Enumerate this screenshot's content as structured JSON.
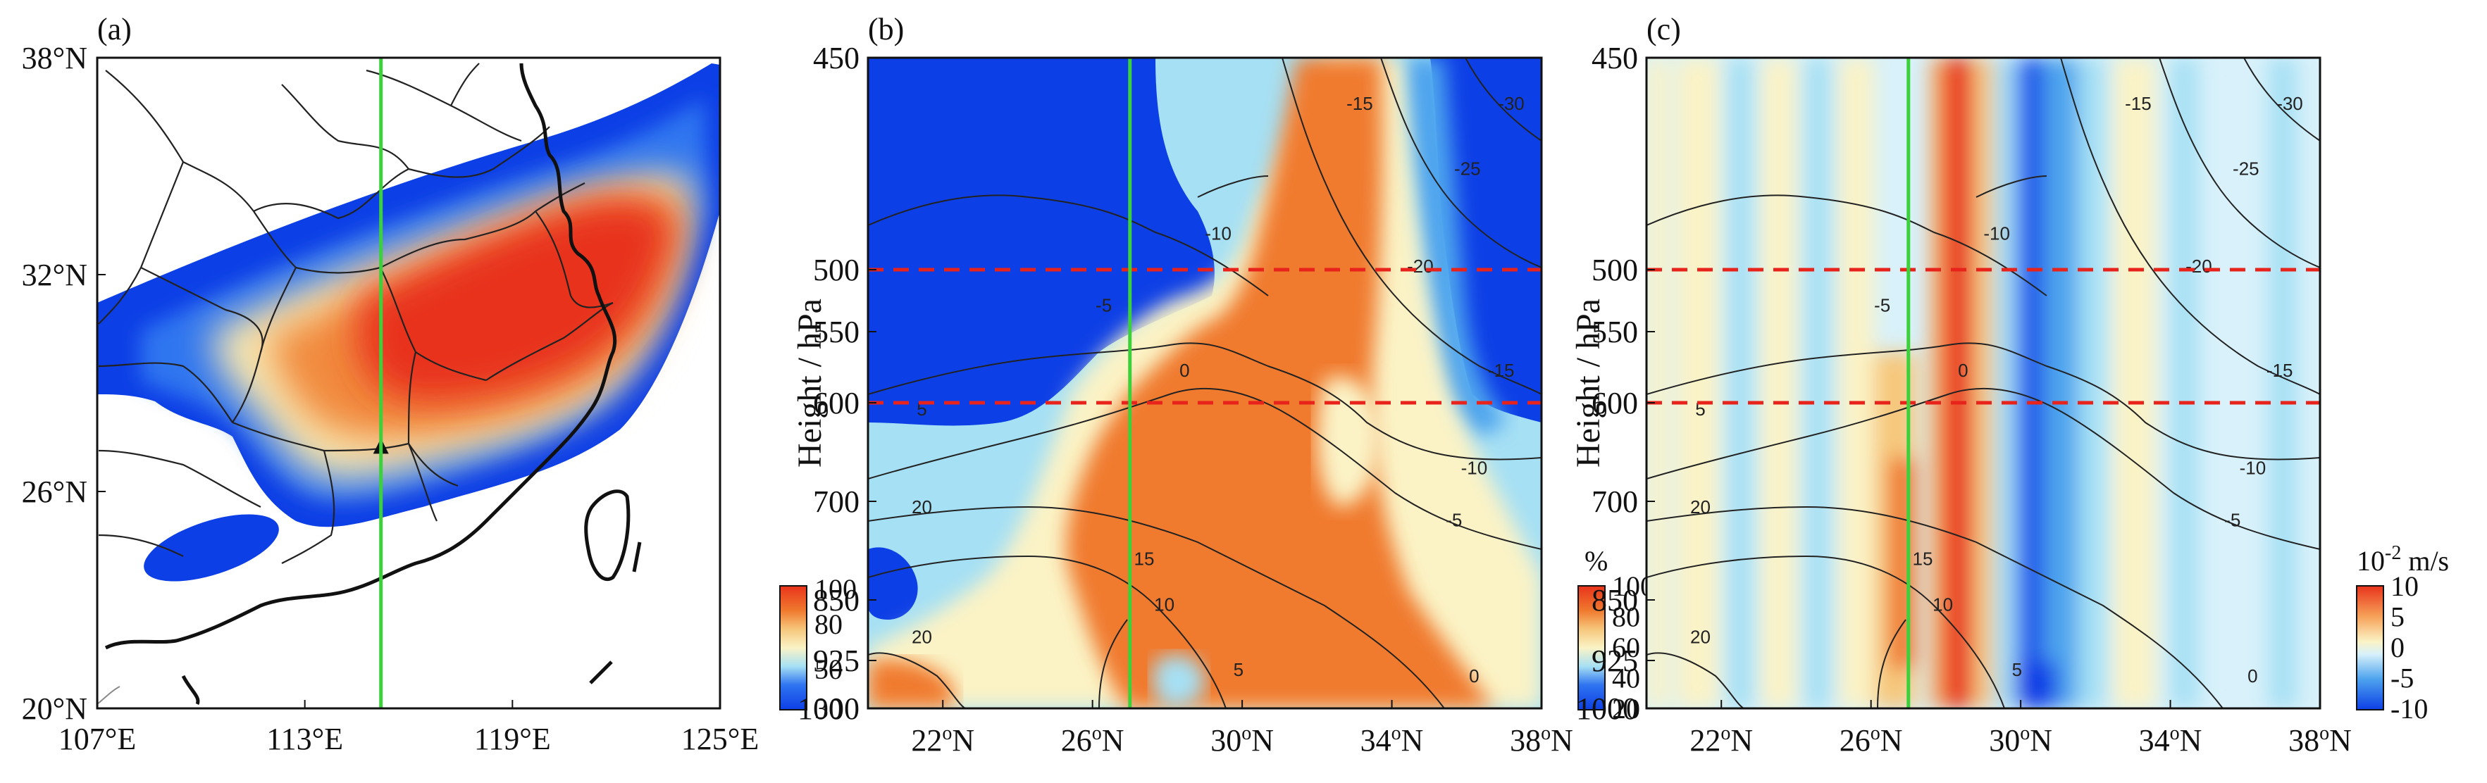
{
  "chart_data": [
    {
      "type": "heatmap",
      "panel_label": "(a)",
      "x_ticks": [
        "107°E",
        "113°E",
        "119°E",
        "125°E"
      ],
      "y_ticks": [
        "20°N",
        "26°N",
        "32°N",
        "38°N"
      ],
      "xlim": [
        107,
        125
      ],
      "ylim": [
        20,
        38
      ],
      "marker_lon": 115.2,
      "marker_lat": 27.2,
      "vertical_line_lon": 115.2,
      "colorbar": {
        "ticks": [
          "30",
          "50",
          "80",
          "100"
        ],
        "unit": ""
      }
    },
    {
      "type": "heatmap",
      "panel_label": "(b)",
      "ylabel": "Height / hPa",
      "x_ticks": [
        "22oN",
        "26oN",
        "30oN",
        "34oN",
        "38oN"
      ],
      "y_ticks": [
        "450",
        "500",
        "550",
        "600",
        "700",
        "850",
        "925",
        "1000"
      ],
      "xlim": [
        20,
        38
      ],
      "dashed_levels": [
        500,
        600
      ],
      "vertical_line_lat": 27,
      "contour_labels": [
        "-30",
        "-25",
        "-20",
        "-15",
        "-15",
        "-10",
        "-10",
        "-5",
        "-5",
        "0",
        "0",
        "5",
        "5",
        "10",
        "15",
        "20",
        "20"
      ],
      "colorbar": {
        "ticks": [
          "20",
          "40",
          "60",
          "80",
          "100"
        ],
        "unit": "%"
      }
    },
    {
      "type": "heatmap",
      "panel_label": "(c)",
      "ylabel": "Height / hPa",
      "x_ticks": [
        "22oN",
        "26oN",
        "30oN",
        "34oN",
        "38oN"
      ],
      "y_ticks": [
        "450",
        "500",
        "550",
        "600",
        "700",
        "850",
        "925",
        "1000"
      ],
      "xlim": [
        20,
        38
      ],
      "dashed_levels": [
        500,
        600
      ],
      "vertical_line_lat": 27,
      "contour_labels": [
        "-30",
        "-25",
        "-20",
        "-15",
        "-15",
        "-10",
        "-10",
        "-5",
        "-5",
        "0",
        "0",
        "5",
        "5",
        "10",
        "15",
        "20",
        "20"
      ],
      "colorbar": {
        "ticks": [
          "-10",
          "-5",
          "0",
          "5",
          "10"
        ],
        "unit": "10-2 m/s"
      }
    }
  ]
}
